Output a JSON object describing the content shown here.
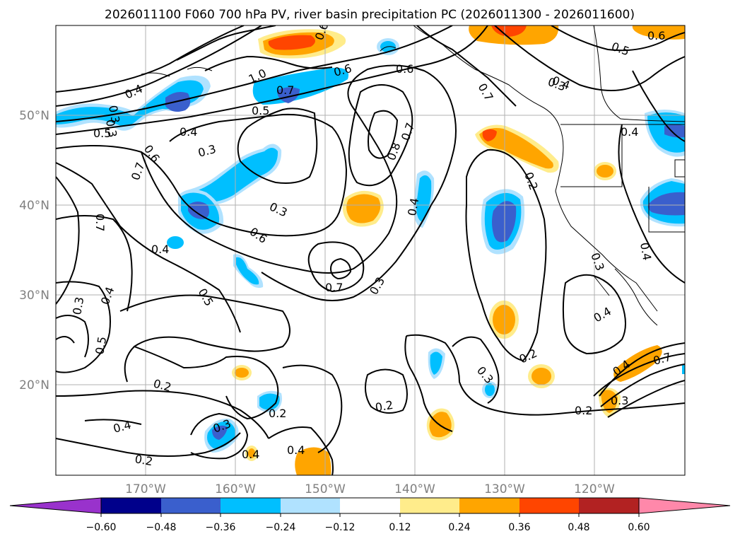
{
  "title": "2026011100 F060 700 hPa PV, river basin precipitation PC (2026011300 - 2026011600)",
  "lat_labels": [
    "50°N",
    "40°N",
    "30°N",
    "20°N"
  ],
  "lon_labels": [
    "170°W",
    "160°W",
    "150°W",
    "140°W",
    "130°W",
    "120°W"
  ],
  "colorbar": {
    "ticks": [
      "−0.60",
      "−0.48",
      "−0.36",
      "−0.24",
      "−0.12",
      "0.12",
      "0.24",
      "0.36",
      "0.48",
      "0.60"
    ],
    "colors": [
      "#9932cc",
      "#00008b",
      "#3a5fcd",
      "#00bfff",
      "#b0e2ff",
      "#ffffff",
      "#ffec8b",
      "#ffa500",
      "#ff4500",
      "#b22222",
      "#ff88aa"
    ]
  },
  "contour_labels": [
    "0.6",
    "0.4",
    "1.0",
    "0.6",
    "0.6",
    "0.5",
    "0.4",
    "0.3",
    "0.4",
    "0.3",
    "0.7",
    "0.5",
    "0.5",
    "0.4",
    "0.6",
    "0.3",
    "0.7",
    "0.8",
    "0.7",
    "0.7",
    "0.3",
    "0.4",
    "0.4",
    "0.2",
    "0.7",
    "0.3",
    "0.6",
    "0.4",
    "0.5",
    "0.3",
    "0.4",
    "0.7",
    "0.3",
    "0.4",
    "0.5",
    "0.4",
    "0.3",
    "0.2",
    "0.2",
    "0.2",
    "0.3",
    "0.2",
    "0.2",
    "0.3",
    "0.4",
    "0.4",
    "0.2",
    "0.4",
    "0.6",
    "0.7",
    "0.3"
  ],
  "chart_data": {
    "type": "map-contour",
    "title": "2026011100 F060 700 hPa PV, river basin precipitation PC (2026011300 - 2026011600)",
    "variables": [
      "700 hPa PV (contours)",
      "river basin precipitation PC (shaded)"
    ],
    "lon_range": [
      -180,
      -110
    ],
    "lat_range": [
      10,
      60
    ],
    "colorbar_levels": [
      -0.6,
      -0.48,
      -0.36,
      -0.24,
      -0.12,
      0.12,
      0.24,
      0.36,
      0.48,
      0.6
    ],
    "colorbar_extend": "both"
  }
}
